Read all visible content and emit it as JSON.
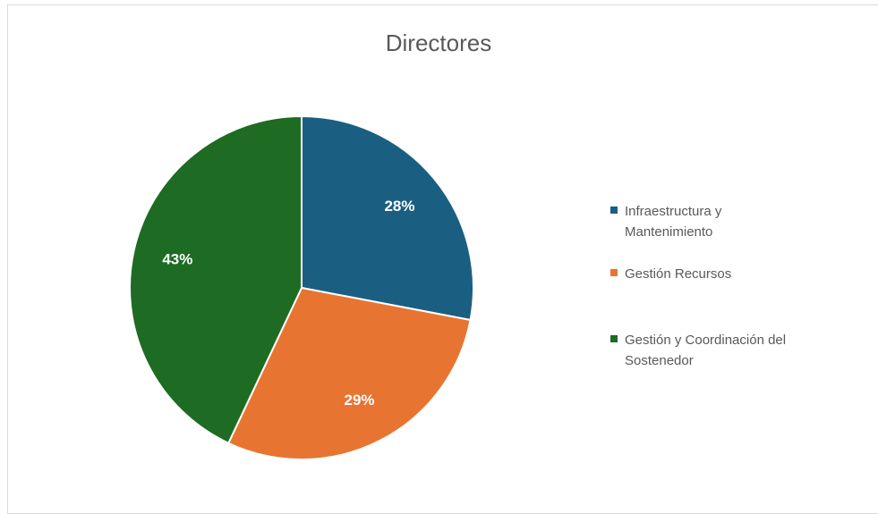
{
  "chart_data": {
    "type": "pie",
    "title": "Directores",
    "categories": [
      "Infraestructura y Mantenimiento",
      "Gestión Recursos",
      "Gestión y Coordinación del Sostenedor"
    ],
    "values": [
      28,
      29,
      43
    ],
    "value_labels": [
      "28%",
      "29%",
      "43%"
    ],
    "colors": [
      "#1a5f82",
      "#e87432",
      "#1e6b23"
    ],
    "legend": "right"
  }
}
